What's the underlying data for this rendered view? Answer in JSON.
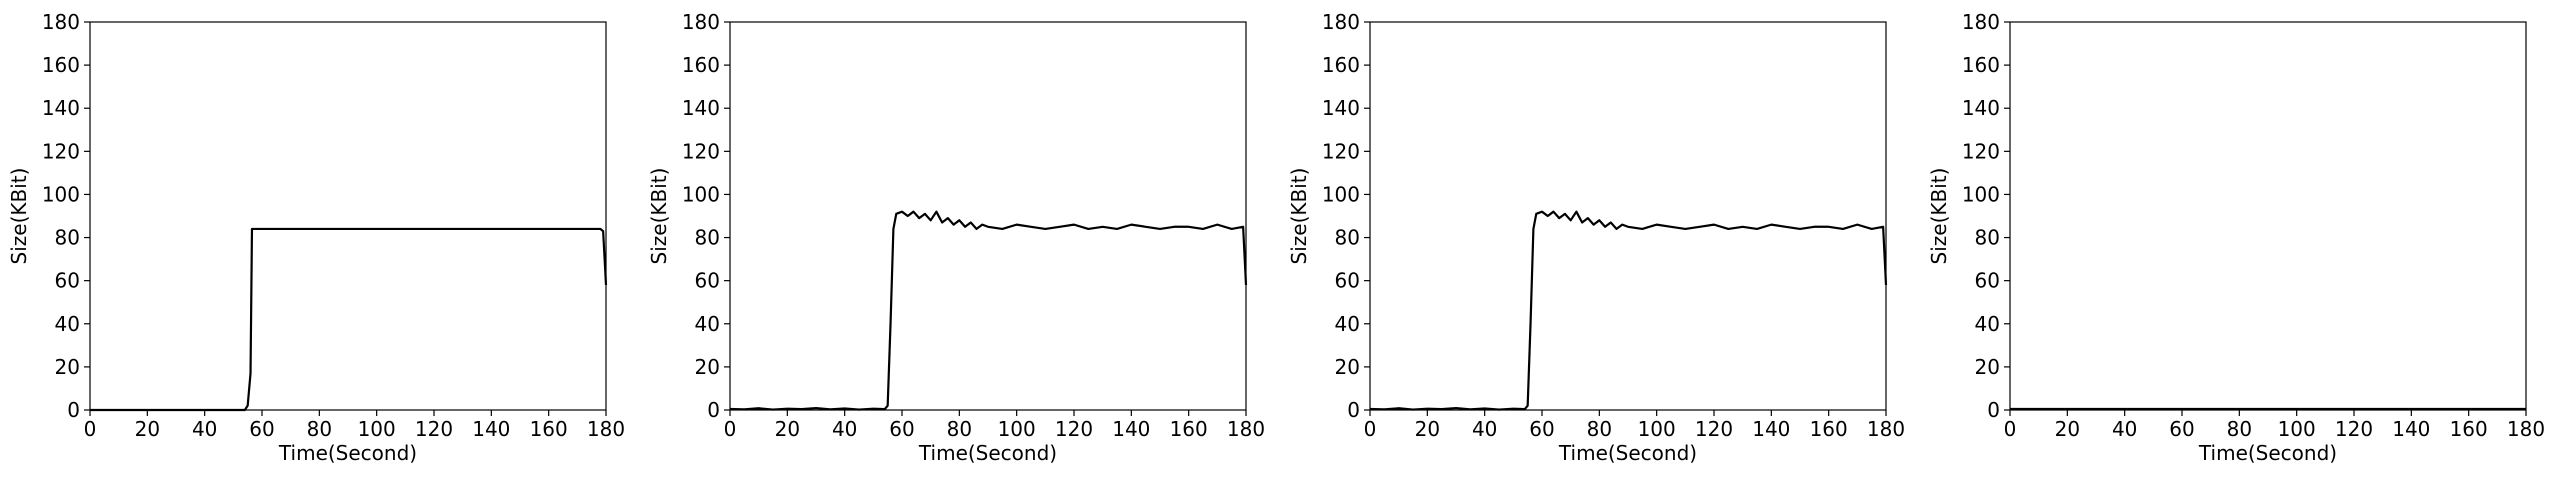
{
  "chart_data": [
    {
      "type": "line",
      "xlabel": "Time(Second)",
      "ylabel": "Size(KBit)",
      "xlim": [
        0,
        180
      ],
      "ylim": [
        0,
        180
      ],
      "xticks": [
        0,
        20,
        40,
        60,
        80,
        100,
        120,
        140,
        160,
        180
      ],
      "yticks": [
        0,
        20,
        40,
        60,
        80,
        100,
        120,
        140,
        160,
        180
      ],
      "grid": false,
      "series": [
        {
          "color": "#000000",
          "x": [
            0,
            10,
            20,
            30,
            40,
            50,
            54,
            55,
            56,
            56.5,
            58,
            60,
            70,
            80,
            90,
            100,
            110,
            120,
            130,
            140,
            150,
            160,
            170,
            178,
            179,
            180
          ],
          "y": [
            0,
            0,
            0,
            0,
            0,
            0,
            0,
            2,
            17,
            84,
            84,
            84,
            84,
            84,
            84,
            84,
            84,
            84,
            84,
            84,
            84,
            84,
            84,
            84,
            83,
            58
          ]
        }
      ]
    },
    {
      "type": "line",
      "xlabel": "Time(Second)",
      "ylabel": "Size(KBit)",
      "xlim": [
        0,
        180
      ],
      "ylim": [
        0,
        180
      ],
      "xticks": [
        0,
        20,
        40,
        60,
        80,
        100,
        120,
        140,
        160,
        180
      ],
      "yticks": [
        0,
        20,
        40,
        60,
        80,
        100,
        120,
        140,
        160,
        180
      ],
      "grid": false,
      "series": [
        {
          "color": "#000000",
          "x": [
            0,
            5,
            10,
            15,
            20,
            25,
            30,
            35,
            40,
            45,
            50,
            54,
            55,
            56,
            57,
            58,
            60,
            62,
            64,
            66,
            68,
            70,
            72,
            74,
            76,
            78,
            80,
            82,
            84,
            86,
            88,
            90,
            95,
            100,
            105,
            110,
            115,
            120,
            125,
            130,
            135,
            140,
            145,
            150,
            155,
            160,
            165,
            170,
            175,
            179,
            180
          ],
          "y": [
            0.5,
            0.3,
            0.8,
            0.2,
            0.6,
            0.4,
            0.9,
            0.3,
            0.7,
            0.2,
            0.6,
            0.4,
            2,
            40,
            84,
            91,
            92,
            90,
            92,
            89,
            91,
            88,
            92,
            87,
            89,
            86,
            88,
            85,
            87,
            84,
            86,
            85,
            84,
            86,
            85,
            84,
            85,
            86,
            84,
            85,
            84,
            86,
            85,
            84,
            85,
            85,
            84,
            86,
            84,
            85,
            58
          ]
        }
      ]
    },
    {
      "type": "line",
      "xlabel": "Time(Second)",
      "ylabel": "Size(KBit)",
      "xlim": [
        0,
        180
      ],
      "ylim": [
        0,
        180
      ],
      "xticks": [
        0,
        20,
        40,
        60,
        80,
        100,
        120,
        140,
        160,
        180
      ],
      "yticks": [
        0,
        20,
        40,
        60,
        80,
        100,
        120,
        140,
        160,
        180
      ],
      "grid": false,
      "series": [
        {
          "color": "#000000",
          "x": [
            0,
            5,
            10,
            15,
            20,
            25,
            30,
            35,
            40,
            45,
            50,
            54,
            55,
            56,
            57,
            58,
            60,
            62,
            64,
            66,
            68,
            70,
            72,
            74,
            76,
            78,
            80,
            82,
            84,
            86,
            88,
            90,
            95,
            100,
            105,
            110,
            115,
            120,
            125,
            130,
            135,
            140,
            145,
            150,
            155,
            160,
            165,
            170,
            175,
            179,
            180
          ],
          "y": [
            0.5,
            0.3,
            0.8,
            0.2,
            0.6,
            0.4,
            0.9,
            0.3,
            0.7,
            0.2,
            0.6,
            0.4,
            2,
            40,
            84,
            91,
            92,
            90,
            92,
            89,
            91,
            88,
            92,
            87,
            89,
            86,
            88,
            85,
            87,
            84,
            86,
            85,
            84,
            86,
            85,
            84,
            85,
            86,
            84,
            85,
            84,
            86,
            85,
            84,
            85,
            85,
            84,
            86,
            84,
            85,
            58
          ]
        }
      ]
    },
    {
      "type": "line",
      "xlabel": "Time(Second)",
      "ylabel": "Size(KBit)",
      "xlim": [
        0,
        180
      ],
      "ylim": [
        0,
        180
      ],
      "xticks": [
        0,
        20,
        40,
        60,
        80,
        100,
        120,
        140,
        160,
        180
      ],
      "yticks": [
        0,
        20,
        40,
        60,
        80,
        100,
        120,
        140,
        160,
        180
      ],
      "grid": false,
      "series": [
        {
          "color": "#000000",
          "x": [
            0,
            20,
            40,
            60,
            80,
            100,
            120,
            140,
            160,
            180
          ],
          "y": [
            0.5,
            0.5,
            0.5,
            0.5,
            0.5,
            0.5,
            0.5,
            0.5,
            0.5,
            0.5
          ]
        }
      ]
    }
  ]
}
